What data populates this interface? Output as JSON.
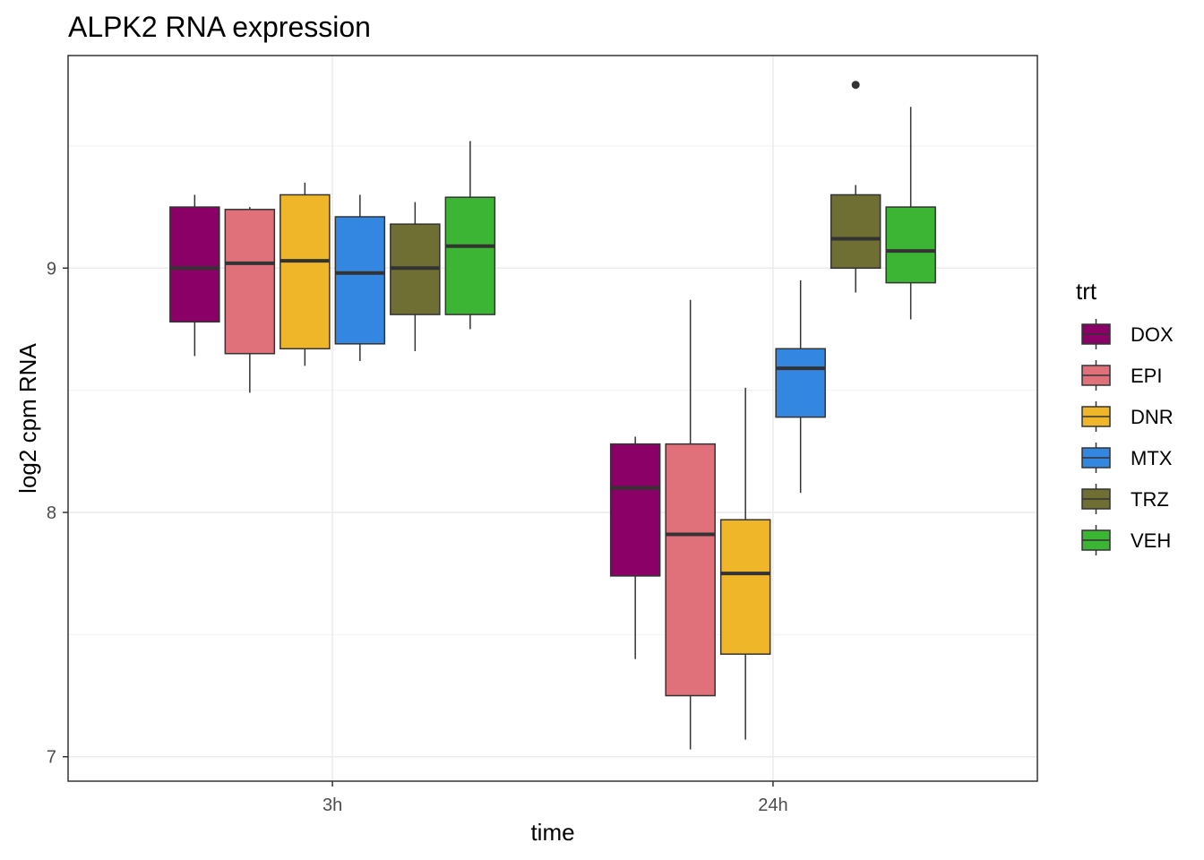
{
  "chart_data": {
    "type": "boxplot",
    "title": "ALPK2 RNA expression",
    "xlabel": "time",
    "ylabel": "log2 cpm RNA",
    "categories": [
      "3h",
      "24h"
    ],
    "ylim": [
      6.9,
      9.87
    ],
    "yticks": [
      7,
      8,
      9
    ],
    "grid": true,
    "legend": {
      "title": "trt",
      "position": "right",
      "items": [
        {
          "label": "DOX",
          "color": "#8B0067"
        },
        {
          "label": "EPI",
          "color": "#E07079"
        },
        {
          "label": "DNR",
          "color": "#F0B629"
        },
        {
          "label": "MTX",
          "color": "#3487E0"
        },
        {
          "label": "TRZ",
          "color": "#6F6E33"
        },
        {
          "label": "VEH",
          "color": "#3DB534"
        }
      ]
    },
    "series": [
      {
        "name": "DOX",
        "boxes": [
          {
            "category": "3h",
            "lower_whisker": 8.64,
            "q1": 8.78,
            "median": 9.0,
            "q3": 9.25,
            "upper_whisker": 9.3,
            "outliers": []
          },
          {
            "category": "24h",
            "lower_whisker": 7.4,
            "q1": 7.74,
            "median": 8.1,
            "q3": 8.28,
            "upper_whisker": 8.31,
            "outliers": []
          }
        ]
      },
      {
        "name": "EPI",
        "boxes": [
          {
            "category": "3h",
            "lower_whisker": 8.49,
            "q1": 8.65,
            "median": 9.02,
            "q3": 9.24,
            "upper_whisker": 9.25,
            "outliers": []
          },
          {
            "category": "24h",
            "lower_whisker": 7.03,
            "q1": 7.25,
            "median": 7.91,
            "q3": 8.28,
            "upper_whisker": 8.87,
            "outliers": []
          }
        ]
      },
      {
        "name": "DNR",
        "boxes": [
          {
            "category": "3h",
            "lower_whisker": 8.6,
            "q1": 8.67,
            "median": 9.03,
            "q3": 9.3,
            "upper_whisker": 9.35,
            "outliers": []
          },
          {
            "category": "24h",
            "lower_whisker": 7.07,
            "q1": 7.42,
            "median": 7.75,
            "q3": 7.97,
            "upper_whisker": 8.51,
            "outliers": []
          }
        ]
      },
      {
        "name": "MTX",
        "boxes": [
          {
            "category": "3h",
            "lower_whisker": 8.62,
            "q1": 8.69,
            "median": 8.98,
            "q3": 9.21,
            "upper_whisker": 9.3,
            "outliers": []
          },
          {
            "category": "24h",
            "lower_whisker": 8.08,
            "q1": 8.39,
            "median": 8.59,
            "q3": 8.67,
            "upper_whisker": 8.95,
            "outliers": []
          }
        ]
      },
      {
        "name": "TRZ",
        "boxes": [
          {
            "category": "3h",
            "lower_whisker": 8.66,
            "q1": 8.81,
            "median": 9.0,
            "q3": 9.18,
            "upper_whisker": 9.27,
            "outliers": []
          },
          {
            "category": "24h",
            "lower_whisker": 8.9,
            "q1": 9.0,
            "median": 9.12,
            "q3": 9.3,
            "upper_whisker": 9.34,
            "outliers": [
              9.75
            ]
          }
        ]
      },
      {
        "name": "VEH",
        "boxes": [
          {
            "category": "3h",
            "lower_whisker": 8.75,
            "q1": 8.81,
            "median": 9.09,
            "q3": 9.29,
            "upper_whisker": 9.52,
            "outliers": []
          },
          {
            "category": "24h",
            "lower_whisker": 8.79,
            "q1": 8.94,
            "median": 9.07,
            "q3": 9.25,
            "upper_whisker": 9.66,
            "outliers": []
          }
        ]
      }
    ]
  }
}
